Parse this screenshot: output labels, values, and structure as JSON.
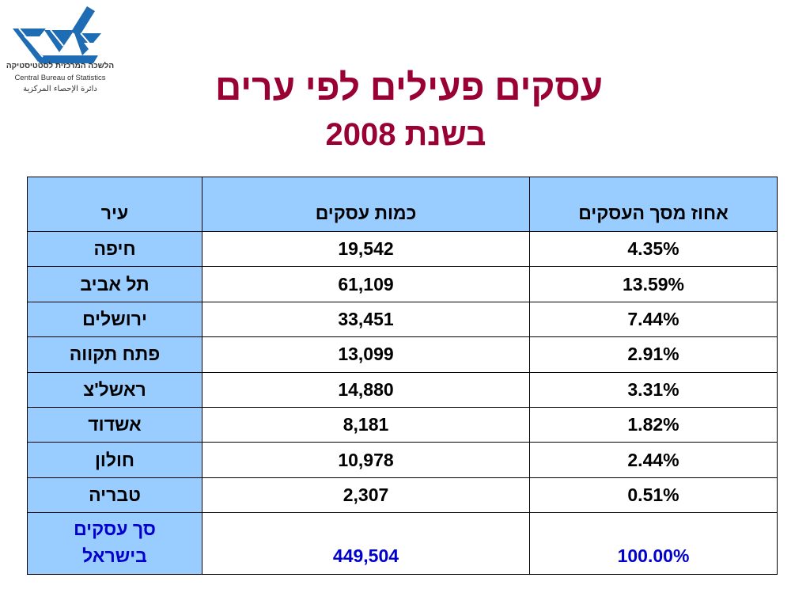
{
  "logo": {
    "icon": "cbs-logo-icon",
    "name_hebrew": "הלשכה המרכזית לסטטיסטיקה",
    "name_english": "Central Bureau of Statistics",
    "name_arabic": "دائرة الإحصاء المركزية"
  },
  "title": "עסקים פעילים לפי ערים",
  "subtitle": "בשנת 2008",
  "table": {
    "headers": {
      "city": "עיר",
      "count": "כמות עסקים",
      "percent": "אחוז מסך העסקים"
    },
    "rows": [
      {
        "city": "חיפה",
        "count": "19,542",
        "percent": "4.35%"
      },
      {
        "city": "תל אביב",
        "count": "61,109",
        "percent": "13.59%"
      },
      {
        "city": "ירושלים",
        "count": "33,451",
        "percent": "7.44%"
      },
      {
        "city": "פתח תקווה",
        "count": "13,099",
        "percent": "2.91%"
      },
      {
        "city": "ראשל'צ",
        "count": "14,880",
        "percent": "3.31%"
      },
      {
        "city": "אשדוד",
        "count": "8,181",
        "percent": "1.82%"
      },
      {
        "city": "חולון",
        "count": "10,978",
        "percent": "2.44%"
      },
      {
        "city": "טבריה",
        "count": "2,307",
        "percent": "0.51%"
      }
    ],
    "total": {
      "city_line1": "סך עסקים",
      "city_line2": "בישראל",
      "count": "449,504",
      "percent": "100.00%"
    }
  },
  "colors": {
    "title": "#990033",
    "header_fill": "#99ccff",
    "total_text": "#0000cc",
    "logo": "#1e6cb3"
  }
}
